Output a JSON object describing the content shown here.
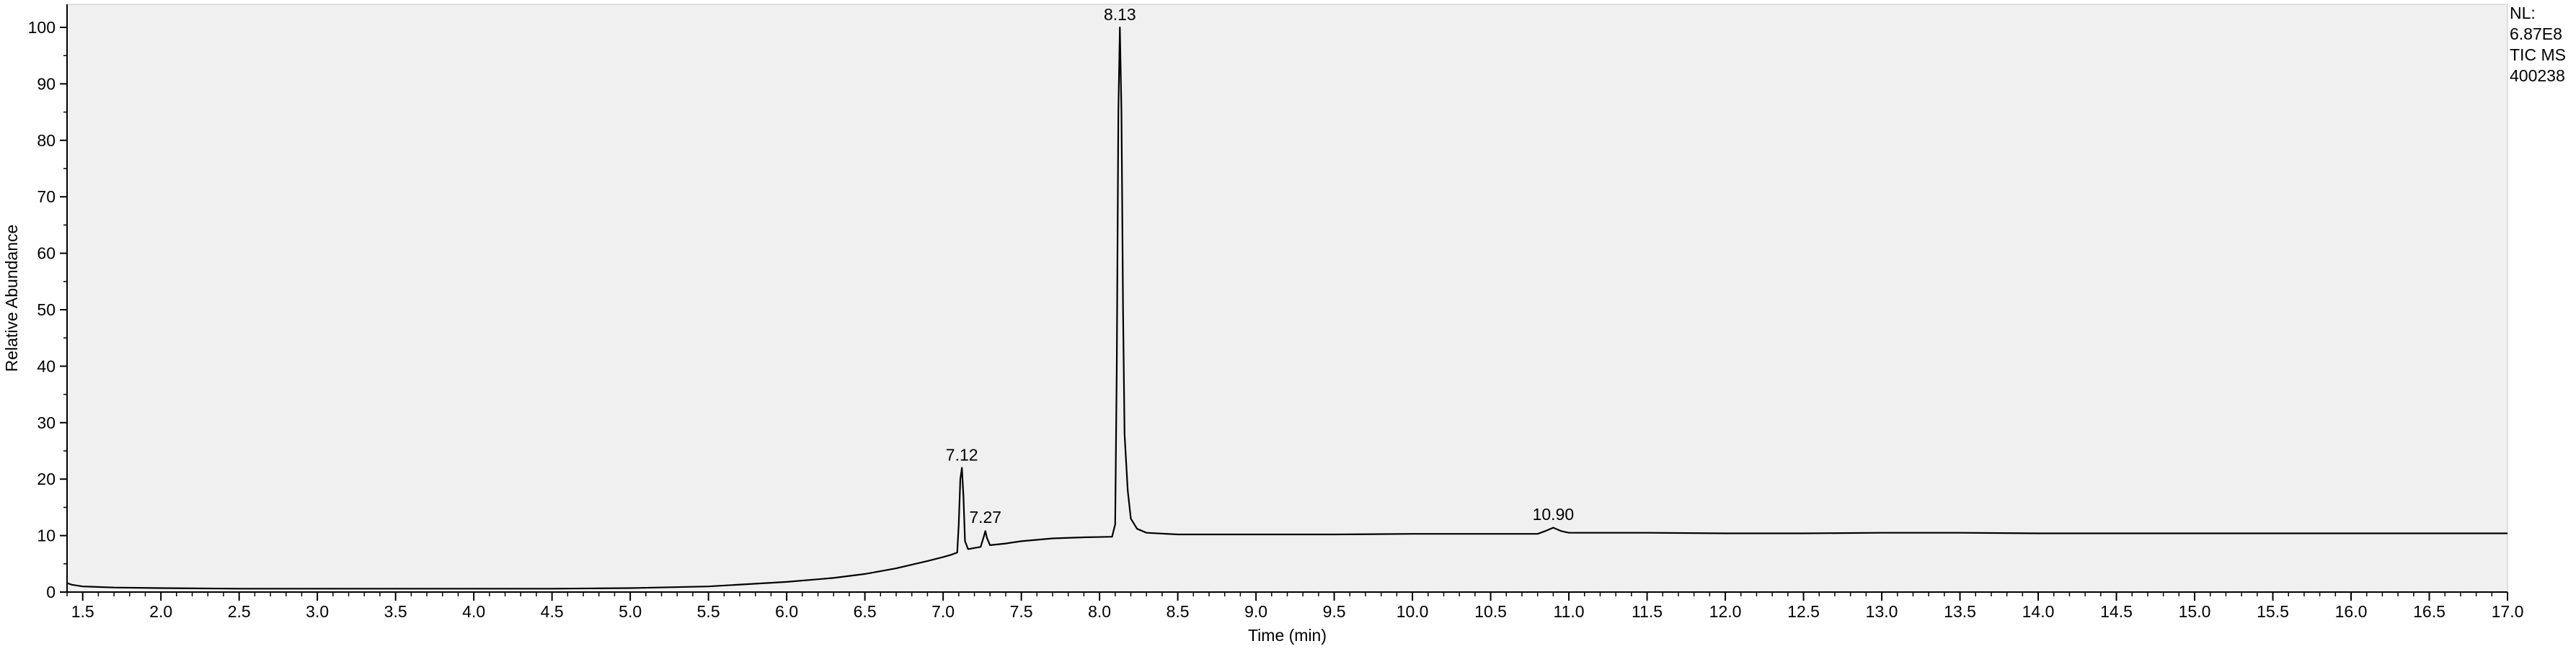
{
  "chart_data": {
    "type": "line",
    "title": "",
    "xlabel": "Time (min)",
    "ylabel": "Relative Abundance",
    "xlim": [
      1.4,
      17.0
    ],
    "ylim": [
      0,
      100
    ],
    "x_ticks": [
      "1.5",
      "2.0",
      "2.5",
      "3.0",
      "3.5",
      "4.0",
      "4.5",
      "5.0",
      "5.5",
      "6.0",
      "6.5",
      "7.0",
      "7.5",
      "8.0",
      "8.5",
      "9.0",
      "9.5",
      "10.0",
      "10.5",
      "11.0",
      "11.5",
      "12.0",
      "12.5",
      "13.0",
      "13.5",
      "14.0",
      "14.5",
      "15.0",
      "15.5",
      "16.0",
      "16.5",
      "17.0"
    ],
    "y_ticks": [
      "0",
      "10",
      "20",
      "30",
      "40",
      "50",
      "60",
      "70",
      "80",
      "90",
      "100"
    ],
    "grid": false,
    "plot_background": "#f0f0f0",
    "line_color": "#000000",
    "side_note": [
      "NL:",
      "6.87E8",
      "TIC  MS",
      "400238"
    ],
    "peak_labels": [
      {
        "label": "7.12",
        "x": 7.12,
        "y": 22
      },
      {
        "label": "7.27",
        "x": 7.27,
        "y": 11
      },
      {
        "label": "8.13",
        "x": 8.13,
        "y": 100
      },
      {
        "label": "10.90",
        "x": 10.9,
        "y": 11.5
      }
    ],
    "series": [
      {
        "points": [
          [
            1.4,
            1.6
          ],
          [
            1.43,
            1.3
          ],
          [
            1.5,
            1.0
          ],
          [
            1.7,
            0.8
          ],
          [
            2.0,
            0.7
          ],
          [
            2.5,
            0.6
          ],
          [
            3.0,
            0.6
          ],
          [
            3.5,
            0.6
          ],
          [
            4.0,
            0.6
          ],
          [
            4.5,
            0.6
          ],
          [
            5.0,
            0.7
          ],
          [
            5.5,
            1.0
          ],
          [
            6.0,
            1.8
          ],
          [
            6.3,
            2.5
          ],
          [
            6.5,
            3.2
          ],
          [
            6.7,
            4.2
          ],
          [
            6.9,
            5.5
          ],
          [
            7.0,
            6.2
          ],
          [
            7.05,
            6.6
          ],
          [
            7.09,
            7.0
          ],
          [
            7.1,
            12.0
          ],
          [
            7.11,
            20.0
          ],
          [
            7.12,
            22.0
          ],
          [
            7.13,
            17.0
          ],
          [
            7.14,
            9.0
          ],
          [
            7.16,
            7.6
          ],
          [
            7.2,
            7.8
          ],
          [
            7.24,
            8.0
          ],
          [
            7.26,
            9.8
          ],
          [
            7.27,
            10.8
          ],
          [
            7.28,
            9.6
          ],
          [
            7.3,
            8.3
          ],
          [
            7.4,
            8.6
          ],
          [
            7.5,
            9.0
          ],
          [
            7.7,
            9.5
          ],
          [
            7.9,
            9.7
          ],
          [
            8.08,
            9.8
          ],
          [
            8.1,
            12.0
          ],
          [
            8.11,
            40.0
          ],
          [
            8.12,
            85.0
          ],
          [
            8.13,
            100.0
          ],
          [
            8.14,
            85.0
          ],
          [
            8.15,
            50.0
          ],
          [
            8.16,
            28.0
          ],
          [
            8.18,
            18.0
          ],
          [
            8.2,
            13.0
          ],
          [
            8.24,
            11.2
          ],
          [
            8.3,
            10.5
          ],
          [
            8.5,
            10.2
          ],
          [
            9.0,
            10.2
          ],
          [
            9.5,
            10.2
          ],
          [
            10.0,
            10.3
          ],
          [
            10.5,
            10.3
          ],
          [
            10.8,
            10.3
          ],
          [
            10.85,
            10.8
          ],
          [
            10.9,
            11.4
          ],
          [
            10.95,
            10.8
          ],
          [
            11.0,
            10.5
          ],
          [
            11.5,
            10.5
          ],
          [
            12.0,
            10.4
          ],
          [
            12.5,
            10.4
          ],
          [
            13.0,
            10.5
          ],
          [
            13.5,
            10.5
          ],
          [
            14.0,
            10.4
          ],
          [
            14.5,
            10.4
          ],
          [
            15.0,
            10.4
          ],
          [
            15.5,
            10.4
          ],
          [
            16.0,
            10.4
          ],
          [
            16.5,
            10.4
          ],
          [
            17.0,
            10.4
          ]
        ]
      }
    ]
  }
}
